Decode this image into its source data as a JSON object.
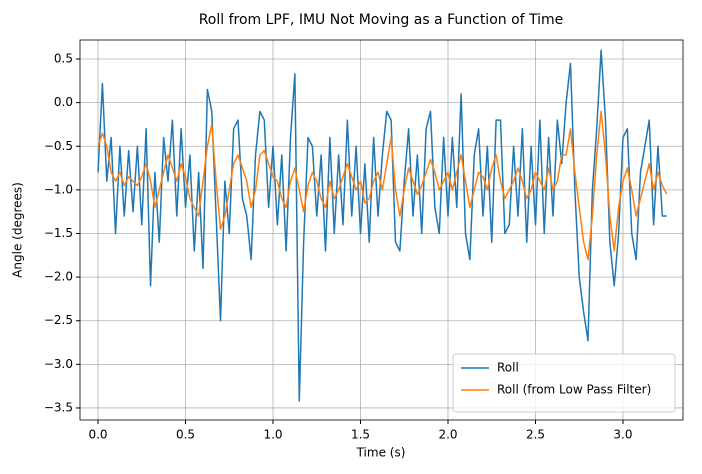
{
  "chart_data": {
    "type": "line",
    "title": "Roll from LPF, IMU Not Moving as a Function of Time",
    "x_label": "Time (s)",
    "y_label": "Angle (degrees)",
    "x": [
      0,
      0.025,
      0.05,
      0.075,
      0.1,
      0.125,
      0.15,
      0.175,
      0.2,
      0.225,
      0.25,
      0.275,
      0.3,
      0.325,
      0.35,
      0.375,
      0.4,
      0.425,
      0.45,
      0.475,
      0.5,
      0.525,
      0.55,
      0.575,
      0.6,
      0.625,
      0.65,
      0.675,
      0.7,
      0.725,
      0.75,
      0.775,
      0.8,
      0.825,
      0.85,
      0.875,
      0.9,
      0.925,
      0.95,
      0.975,
      1,
      1.025,
      1.05,
      1.075,
      1.1,
      1.125,
      1.15,
      1.175,
      1.2,
      1.225,
      1.25,
      1.275,
      1.3,
      1.325,
      1.35,
      1.375,
      1.4,
      1.425,
      1.45,
      1.475,
      1.5,
      1.525,
      1.55,
      1.575,
      1.6,
      1.625,
      1.65,
      1.675,
      1.7,
      1.725,
      1.75,
      1.775,
      1.8,
      1.825,
      1.85,
      1.875,
      1.9,
      1.925,
      1.95,
      1.975,
      2,
      2.025,
      2.05,
      2.075,
      2.1,
      2.125,
      2.15,
      2.175,
      2.2,
      2.225,
      2.25,
      2.275,
      2.3,
      2.325,
      2.35,
      2.375,
      2.4,
      2.425,
      2.45,
      2.475,
      2.5,
      2.525,
      2.55,
      2.575,
      2.6,
      2.625,
      2.65,
      2.675,
      2.7,
      2.725,
      2.75,
      2.775,
      2.8,
      2.825,
      2.85,
      2.875,
      2.9,
      2.925,
      2.95,
      2.975,
      3,
      3.025,
      3.05,
      3.075,
      3.1,
      3.125,
      3.15,
      3.175,
      3.2,
      3.225,
      3.25
    ],
    "series": [
      {
        "name": "Roll",
        "color": "#1f77b4",
        "values": [
          -0.8,
          0.22,
          -0.9,
          -0.4,
          -1.5,
          -0.5,
          -1.3,
          -0.55,
          -1.25,
          -0.5,
          -1.4,
          -0.3,
          -2.1,
          -0.8,
          -1.6,
          -0.4,
          -0.9,
          -0.2,
          -1.3,
          -0.3,
          -1.2,
          -0.6,
          -1.7,
          -0.8,
          -1.9,
          0.15,
          -0.1,
          -1.3,
          -2.5,
          -0.9,
          -1.5,
          -0.3,
          -0.2,
          -1.1,
          -1.3,
          -1.8,
          -0.6,
          -0.1,
          -0.2,
          -1.2,
          -0.5,
          -1.4,
          -0.6,
          -1.7,
          -0.4,
          0.33,
          -3.42,
          -1.6,
          -0.4,
          -0.5,
          -1.3,
          -0.6,
          -1.7,
          -0.4,
          -1.5,
          -0.6,
          -1.4,
          -0.2,
          -1.3,
          -0.5,
          -1.5,
          -0.7,
          -1.6,
          -0.4,
          -1.3,
          -0.6,
          -0.1,
          -0.2,
          -1.6,
          -1.7,
          -0.9,
          -0.3,
          -1.3,
          -0.6,
          -1.5,
          -0.3,
          -0.1,
          -1.2,
          -1.5,
          -0.4,
          -1.3,
          -0.4,
          -1.2,
          0.1,
          -1.5,
          -1.8,
          -0.6,
          -0.3,
          -1.3,
          -0.5,
          -1.6,
          -0.2,
          -0.2,
          -1.5,
          -1.4,
          -0.5,
          -1.3,
          -0.3,
          -1.6,
          -0.5,
          -1.4,
          -0.2,
          -1.5,
          -0.4,
          -1.3,
          -0.2,
          -0.7,
          0.0,
          0.45,
          -1.0,
          -2.0,
          -2.4,
          -2.73,
          -1.0,
          -0.3,
          0.6,
          -0.2,
          -1.6,
          -2.1,
          -1.5,
          -0.4,
          -0.3,
          -1.5,
          -1.8,
          -0.8,
          -0.5,
          -0.2,
          -1.4,
          -0.5,
          -1.3,
          -1.3
        ]
      },
      {
        "name": "Roll (from Low Pass Filter)",
        "color": "#ff7f0e",
        "values": [
          -0.5,
          -0.35,
          -0.5,
          -0.8,
          -0.9,
          -0.8,
          -0.95,
          -0.85,
          -0.9,
          -0.95,
          -0.85,
          -0.7,
          -0.9,
          -1.2,
          -1.0,
          -0.8,
          -0.6,
          -0.75,
          -0.9,
          -0.7,
          -0.85,
          -1.1,
          -1.2,
          -1.3,
          -0.9,
          -0.5,
          -0.25,
          -0.9,
          -1.45,
          -1.3,
          -1.0,
          -0.7,
          -0.6,
          -0.75,
          -0.9,
          -1.2,
          -1.0,
          -0.6,
          -0.55,
          -0.7,
          -0.85,
          -0.9,
          -1.1,
          -1.2,
          -0.9,
          -0.75,
          -1.0,
          -1.25,
          -0.95,
          -0.8,
          -0.9,
          -1.1,
          -1.2,
          -0.9,
          -1.1,
          -1.0,
          -0.85,
          -0.7,
          -0.85,
          -1.0,
          -0.9,
          -1.15,
          -1.1,
          -0.9,
          -0.8,
          -1.0,
          -0.7,
          -0.4,
          -1.0,
          -1.3,
          -1.0,
          -0.75,
          -0.9,
          -1.05,
          -0.95,
          -0.8,
          -0.65,
          -0.8,
          -1.0,
          -0.9,
          -0.8,
          -1.0,
          -0.8,
          -0.6,
          -0.9,
          -1.2,
          -1.0,
          -0.8,
          -0.85,
          -1.0,
          -0.75,
          -0.6,
          -0.9,
          -1.1,
          -1.0,
          -0.9,
          -0.75,
          -0.9,
          -1.1,
          -1.0,
          -0.8,
          -0.9,
          -1.0,
          -0.75,
          -1.0,
          -0.9,
          -0.6,
          -0.6,
          -0.3,
          -0.8,
          -1.2,
          -1.6,
          -1.8,
          -1.3,
          -0.6,
          -0.1,
          -0.6,
          -1.3,
          -1.7,
          -1.2,
          -0.9,
          -0.75,
          -1.0,
          -1.3,
          -1.1,
          -0.9,
          -0.7,
          -1.0,
          -0.8,
          -0.95,
          -1.05
        ]
      }
    ],
    "xlim": [
      -0.103,
      3.343
    ],
    "ylim": [
      -3.638,
      0.718
    ],
    "xticks": [
      {
        "value": 0,
        "label": "0.0"
      },
      0.5,
      {
        "value": 1,
        "label": "1.0"
      },
      1.5,
      {
        "value": 2,
        "label": "2.0"
      },
      2.5,
      {
        "value": 3,
        "label": "3.0"
      }
    ],
    "yticks": [
      {
        "value": -3.5,
        "label": "−3.5"
      },
      {
        "value": -3,
        "label": "−3.0"
      },
      {
        "value": -2.5,
        "label": "−2.5"
      },
      {
        "value": -2,
        "label": "−2.0"
      },
      {
        "value": -1.5,
        "label": "−1.5"
      },
      {
        "value": -1,
        "label": "−1.0"
      },
      {
        "value": -0.5,
        "label": "−0.5"
      },
      {
        "value": 0,
        "label": "0.0"
      },
      0.5
    ],
    "grid": true,
    "legend": "lower right"
  }
}
